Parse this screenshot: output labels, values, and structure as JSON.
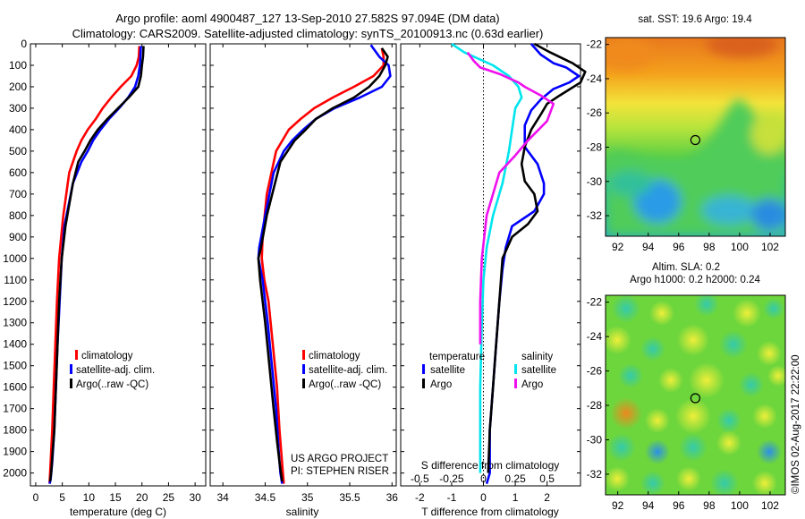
{
  "header": {
    "line1": "Argo profile: aoml 4900487_127 13-Sep-2010 27.582S 97.094E (DM data)",
    "line2": "Climatology: CARS2009. Satellite-adjusted climatology: synTS_20100913.nc (0.63d earlier)"
  },
  "colors": {
    "climatology": "#ff0000",
    "satellite": "#0000ff",
    "argo": "#000000",
    "sal_satellite": "#00e5ee",
    "sal_argo": "#ee11ee"
  },
  "depth_axis": {
    "ylim": [
      0,
      2060
    ],
    "ticks": [
      0,
      100,
      200,
      300,
      400,
      500,
      600,
      700,
      800,
      900,
      1000,
      1100,
      1200,
      1300,
      1400,
      1500,
      1600,
      1700,
      1800,
      1900,
      2000
    ]
  },
  "chart_data": [
    {
      "type": "line",
      "id": "temperature",
      "xlabel": "temperature (deg C)",
      "xlim": [
        -1,
        32
      ],
      "xticks": [
        0,
        5,
        10,
        15,
        20,
        25,
        30
      ],
      "legend": {
        "placement": "lower-left",
        "entries": [
          "climatology",
          "satellite-adj. clim.",
          "Argo(..raw -QC)"
        ]
      },
      "series": [
        {
          "name": "climatology",
          "color": "#ff0000",
          "x": [
            19.5,
            19.4,
            19.0,
            18.0,
            16.0,
            14.2,
            12.6,
            11.3,
            9.8,
            8.6,
            7.7,
            6.3,
            5.2,
            4.8,
            4.4,
            4.0,
            3.7,
            3.4,
            3.1,
            2.9,
            2.7,
            2.6
          ],
          "y": [
            10,
            60,
            100,
            150,
            200,
            250,
            300,
            350,
            400,
            450,
            500,
            600,
            800,
            900,
            1000,
            1200,
            1400,
            1600,
            1800,
            1900,
            2000,
            2050
          ]
        },
        {
          "name": "satellite-adj. clim.",
          "color": "#0000ff",
          "x": [
            19.8,
            19.7,
            19.6,
            19.3,
            18.7,
            17.4,
            15.7,
            13.8,
            12.2,
            10.8,
            9.8,
            8.6,
            7.0,
            5.4,
            4.9,
            4.5,
            4.1,
            3.8,
            3.5,
            3.1,
            2.8,
            2.6
          ],
          "y": [
            10,
            60,
            100,
            150,
            200,
            250,
            300,
            350,
            400,
            450,
            500,
            550,
            650,
            850,
            1000,
            1200,
            1400,
            1600,
            1800,
            1950,
            2030,
            2050
          ]
        },
        {
          "name": "Argo(..raw -QC)",
          "color": "#000000",
          "x": [
            20.3,
            20.2,
            20.0,
            19.8,
            19.3,
            17.5,
            15.5,
            13.5,
            11.7,
            10.3,
            9.2,
            8.0,
            7.0,
            5.6,
            4.9,
            4.4,
            4.1,
            3.8,
            3.5,
            3.2,
            2.9,
            2.7
          ],
          "y": [
            10,
            60,
            100,
            150,
            200,
            250,
            300,
            350,
            400,
            450,
            500,
            550,
            650,
            850,
            1000,
            1200,
            1400,
            1600,
            1800,
            1900,
            2000,
            2040
          ]
        }
      ]
    },
    {
      "type": "line",
      "id": "salinity",
      "xlabel": "salinity",
      "xlim": [
        33.85,
        36.05
      ],
      "xticks": [
        34,
        34.5,
        35,
        35.5,
        36
      ],
      "legend": {
        "placement": "lower-left",
        "entries": [
          "climatology",
          "satellite-adj. clim.",
          "Argo(..raw -QC)"
        ]
      },
      "annotation": [
        "US ARGO PROJECT",
        "PI: STEPHEN RISER"
      ],
      "series": [
        {
          "name": "climatology",
          "color": "#ff0000",
          "x": [
            35.88,
            35.9,
            35.9,
            35.78,
            35.55,
            35.3,
            35.08,
            34.92,
            34.78,
            34.63,
            34.52,
            34.47,
            34.46,
            34.49,
            34.54,
            34.59,
            34.64,
            34.67,
            34.69,
            34.71,
            34.72
          ],
          "y": [
            20,
            60,
            100,
            150,
            200,
            250,
            300,
            350,
            400,
            500,
            700,
            900,
            1000,
            1100,
            1200,
            1400,
            1600,
            1800,
            1900,
            2000,
            2050
          ]
        },
        {
          "name": "satellite-adj. clim.",
          "color": "#0000ff",
          "x": [
            35.75,
            35.85,
            35.96,
            35.98,
            35.88,
            35.62,
            35.32,
            35.1,
            34.95,
            34.82,
            34.72,
            34.6,
            34.5,
            34.43,
            34.42,
            34.47,
            34.53,
            34.58,
            34.63,
            34.66,
            34.68,
            34.7
          ],
          "y": [
            5,
            60,
            100,
            150,
            200,
            250,
            300,
            350,
            400,
            450,
            500,
            600,
            800,
            950,
            1000,
            1100,
            1300,
            1500,
            1700,
            1900,
            2000,
            2050
          ]
        },
        {
          "name": "Argo(..raw -QC)",
          "color": "#000000",
          "x": [
            35.88,
            35.95,
            35.92,
            35.85,
            35.73,
            35.55,
            35.3,
            35.1,
            34.98,
            34.85,
            34.68,
            34.52,
            34.45,
            34.42,
            34.44,
            34.5,
            34.55,
            34.6,
            34.64,
            34.67,
            34.7
          ],
          "y": [
            20,
            60,
            100,
            150,
            200,
            250,
            300,
            350,
            400,
            450,
            550,
            800,
            950,
            1000,
            1100,
            1300,
            1500,
            1700,
            1850,
            1950,
            2040
          ]
        }
      ]
    },
    {
      "type": "line",
      "id": "difference",
      "xlabel": "T difference from climatology",
      "xlabel_top": "S difference from climatology",
      "xlim": [
        -2.6,
        3.05
      ],
      "xticks": [
        -2,
        -1,
        0,
        1,
        2
      ],
      "sticks_labels": [
        "-0.5",
        "-0.25",
        "0",
        "0.25",
        "0.5"
      ],
      "sticks_xpos": [
        -2,
        -1,
        0,
        1,
        2
      ],
      "legend": {
        "placement": "lower-center",
        "col1_title": "temperature",
        "col2_title": "salinity",
        "col1": [
          "satellite",
          "Argo"
        ],
        "col2": [
          "satellite",
          "Argo"
        ]
      },
      "series": [
        {
          "name": "T satellite",
          "color": "#0000ff",
          "x": [
            1.5,
            1.8,
            2.2,
            2.6,
            3.0,
            2.7,
            2.2,
            1.8,
            1.5,
            1.3,
            1.3,
            1.7,
            1.9,
            1.9,
            1.6,
            0.9,
            0.7,
            0.6,
            0.5,
            0.4,
            0.3,
            0.2,
            0.2,
            0.1
          ],
          "y": [
            0,
            50,
            90,
            110,
            150,
            180,
            210,
            260,
            310,
            380,
            480,
            560,
            650,
            700,
            780,
            850,
            950,
            1050,
            1200,
            1400,
            1600,
            1800,
            2000,
            2050
          ]
        },
        {
          "name": "T Argo",
          "color": "#000000",
          "x": [
            1.6,
            2.1,
            2.8,
            3.2,
            3.05,
            2.4,
            2.0,
            1.8,
            1.5,
            1.3,
            1.2,
            1.3,
            1.6,
            1.7,
            1.4,
            0.9,
            0.6,
            0.5,
            0.4,
            0.3,
            0.2,
            0.15
          ],
          "y": [
            0,
            40,
            90,
            130,
            180,
            240,
            280,
            330,
            400,
            480,
            560,
            640,
            700,
            780,
            840,
            900,
            1000,
            1200,
            1400,
            1600,
            1800,
            2000
          ]
        },
        {
          "name": "S satellite",
          "color": "#00e5ee",
          "x": [
            -1.0,
            -0.6,
            0.3,
            0.8,
            1.1,
            1.2,
            1.0,
            0.9,
            0.8,
            0.6,
            0.3,
            0.1,
            0.0,
            -0.05,
            -0.1,
            -0.1,
            -0.1
          ],
          "y": [
            0,
            40,
            100,
            150,
            200,
            250,
            300,
            400,
            500,
            650,
            800,
            950,
            1100,
            1300,
            1600,
            1800,
            2000
          ]
        },
        {
          "name": "S Argo",
          "color": "#ee11ee",
          "x": [
            -0.5,
            -0.3,
            -0.1,
            0.5,
            1.1,
            1.3,
            1.8,
            2.2,
            2.0,
            1.4,
            1.0,
            0.5,
            0.1,
            -0.05,
            -0.1,
            -0.1
          ],
          "y": [
            40,
            80,
            110,
            140,
            180,
            200,
            240,
            280,
            360,
            450,
            520,
            600,
            800,
            1000,
            1200,
            1400
          ]
        }
      ]
    },
    {
      "type": "heatmap",
      "id": "sst-map",
      "title": "sat. SST: 19.6 Argo: 19.4",
      "xticks": [
        92,
        94,
        96,
        98,
        100,
        102
      ],
      "yticks": [
        -22,
        -24,
        -26,
        -28,
        -30,
        -32
      ],
      "xlim": [
        91.2,
        103.0
      ],
      "ylim": [
        -33.2,
        -21.6
      ],
      "marker": {
        "lon": 97.094,
        "lat": -27.582
      }
    },
    {
      "type": "heatmap",
      "id": "sla-map",
      "title": [
        "Altim. SLA: 0.2",
        "Argo h1000: 0.2 h2000: 0.24"
      ],
      "xticks": [
        92,
        94,
        96,
        98,
        100,
        102
      ],
      "yticks": [
        -22,
        -24,
        -26,
        -28,
        -30,
        -32
      ],
      "xlim": [
        91.2,
        103.0
      ],
      "ylim": [
        -33.2,
        -21.6
      ],
      "marker": {
        "lon": 97.094,
        "lat": -27.582
      }
    }
  ],
  "credit": "©IMOS 02-Aug-2017 22:22:00"
}
